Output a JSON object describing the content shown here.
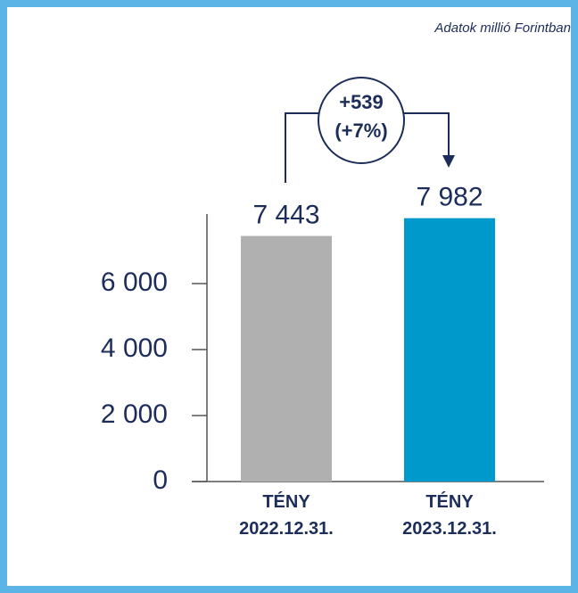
{
  "chart_data": {
    "type": "bar",
    "note": "Adatok millió Forintban",
    "categories": [
      "TÉNY 2022.12.31.",
      "TÉNY 2023.12.31."
    ],
    "values": [
      7443,
      7982
    ],
    "value_labels": [
      "7 443",
      "7 982"
    ],
    "colors": [
      "#b0b0b0",
      "#0099cc"
    ],
    "ylim": [
      0,
      8000
    ],
    "yticks": [
      {
        "value": 0,
        "label": "0"
      },
      {
        "value": 2000,
        "label": "2 000"
      },
      {
        "value": 4000,
        "label": "4 000"
      },
      {
        "value": 6000,
        "label": "6 000"
      }
    ],
    "annotations": [
      "+539",
      "(+7%)"
    ]
  }
}
